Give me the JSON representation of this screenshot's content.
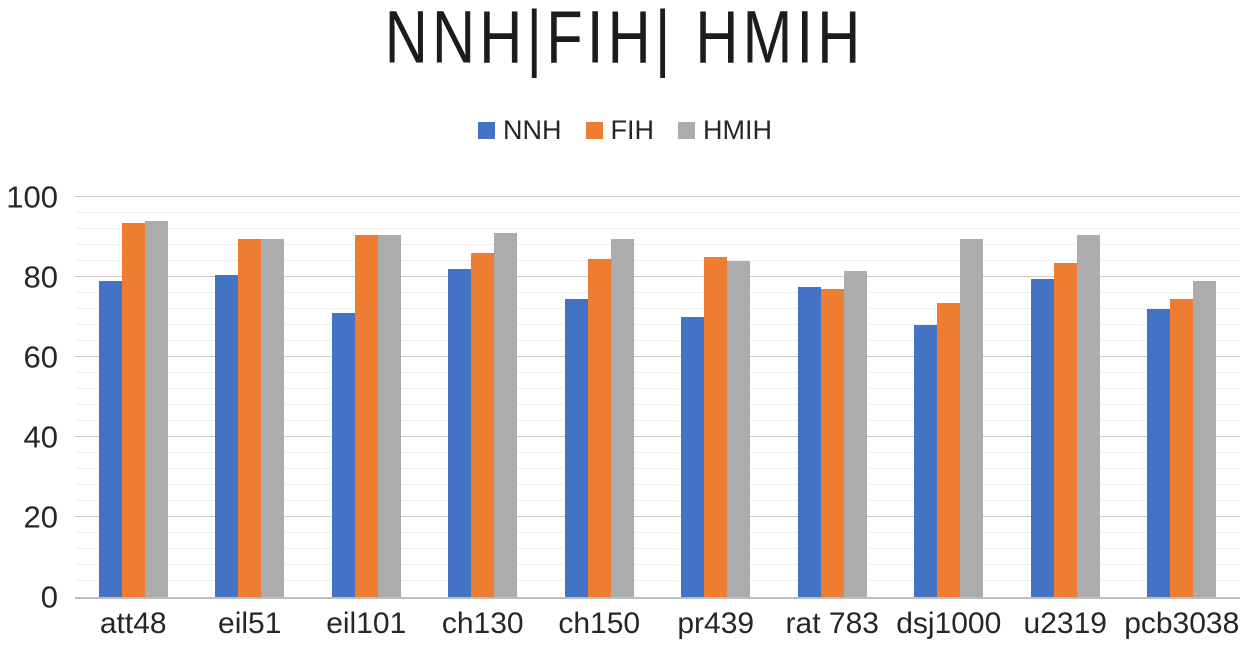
{
  "chart": {
    "title": "NNH|FIH| HMIH"
  },
  "chart_data": {
    "type": "bar",
    "title": "NNH|FIH| HMIH",
    "xlabel": "",
    "ylabel": "",
    "ylim": [
      0,
      100
    ],
    "yticks": [
      0,
      20,
      40,
      60,
      80,
      100
    ],
    "minor_unit": 4,
    "grid": "horizontal",
    "legend_position": "top",
    "categories": [
      "att48",
      "eil51",
      "eil101",
      "ch130",
      "ch150",
      "pr439",
      "rat 783",
      "dsj1000",
      "u2319",
      "pcb3038"
    ],
    "series": [
      {
        "name": "NNH",
        "color": "#4472C4",
        "values": [
          79,
          80.5,
          71,
          82,
          74.5,
          70,
          77.5,
          68,
          79.5,
          72
        ]
      },
      {
        "name": "FIH",
        "color": "#ED7D31",
        "values": [
          93.5,
          89.5,
          90.5,
          86,
          84.5,
          85,
          77,
          73.5,
          83.5,
          74.5
        ]
      },
      {
        "name": "HMIH",
        "color": "#ACACAF",
        "values": [
          94,
          89.5,
          90.5,
          91,
          89.5,
          84,
          81.5,
          89.5,
          90.5,
          79
        ]
      }
    ]
  }
}
